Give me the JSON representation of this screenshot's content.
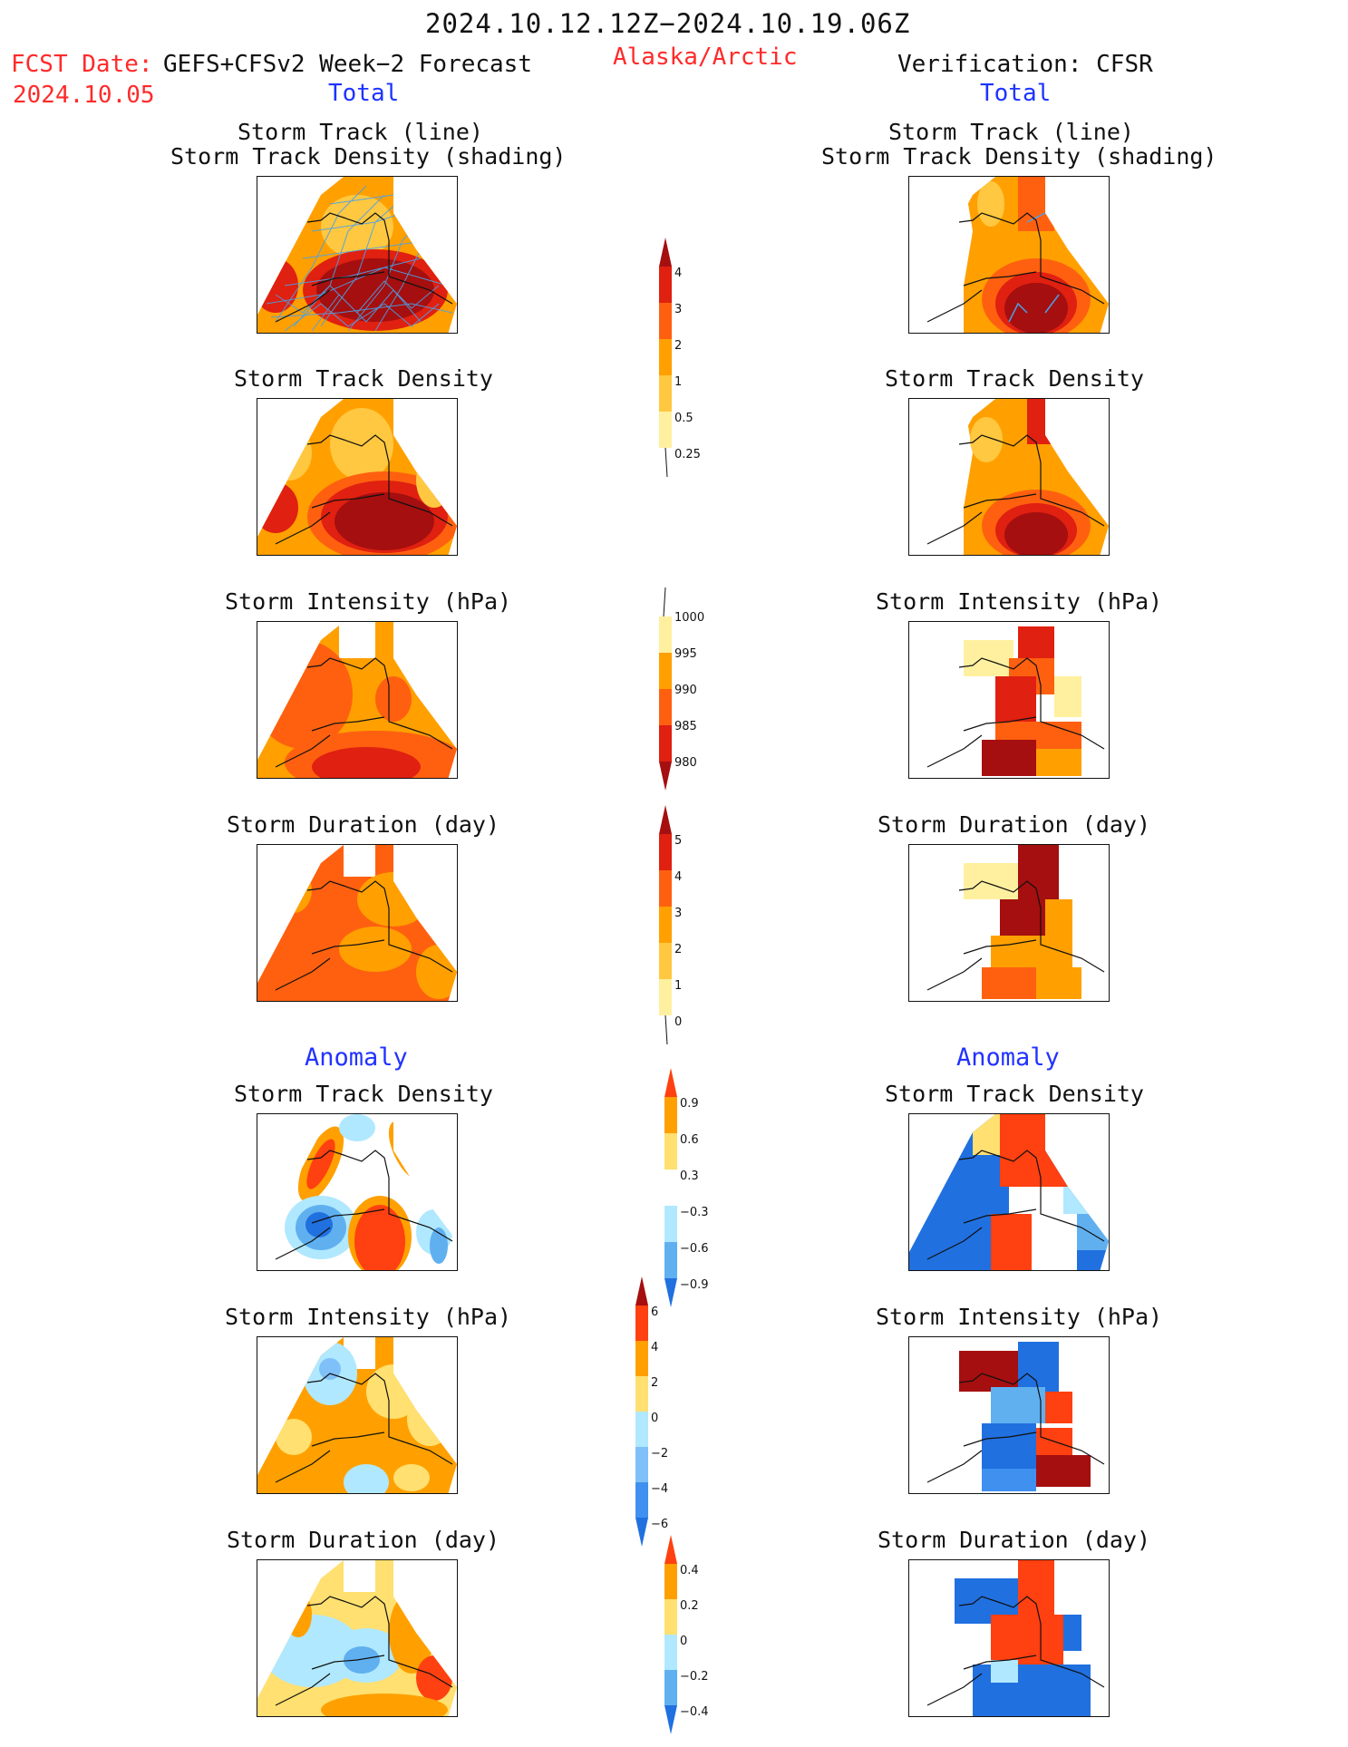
{
  "header": {
    "period": "2024.10.12.12Z−2024.10.19.06Z",
    "fcst_label": "FCST Date:",
    "fcst_source": "GEFS+CFSv2 Week−2 Forecast",
    "fcst_date": "2024.10.05",
    "region": "Alaska/Arctic",
    "verification": "Verification: CFSR"
  },
  "columns": {
    "left_total": "Total",
    "right_total": "Total",
    "left_anomaly": "Anomaly",
    "right_anomaly": "Anomaly"
  },
  "panels": {
    "track_line": "Storm Track (line)",
    "track_shading": "Storm Track Density (shading)",
    "density": "Storm Track Density",
    "intensity": "Storm Intensity (hPa)",
    "duration": "Storm Duration (day)"
  },
  "colorbars": {
    "density_total": {
      "labels": [
        "4",
        "3",
        "2",
        "1",
        "0.5",
        "0.25"
      ],
      "colors": [
        "#a50f0f",
        "#e02010",
        "#ff6010",
        "#ffa000",
        "#ffc840",
        "#fff0a0"
      ]
    },
    "intensity_total": {
      "labels": [
        "1000",
        "995",
        "990",
        "985",
        "980"
      ],
      "colors": [
        "#fff0a0",
        "#ffa000",
        "#ff6010",
        "#e02010",
        "#a50f0f"
      ]
    },
    "duration_total": {
      "labels": [
        "5",
        "4",
        "3",
        "2",
        "1",
        "0"
      ],
      "colors": [
        "#a50f0f",
        "#e02010",
        "#ff6010",
        "#ffa000",
        "#ffc840",
        "#fff0a0"
      ]
    },
    "density_anom": {
      "labels": [
        "0.9",
        "0.6",
        "0.3",
        "−0.3",
        "−0.6",
        "−0.9"
      ],
      "colors": [
        "#ff4010",
        "#ffa000",
        "#ffe070",
        "#ffffff",
        "#b0e8ff",
        "#60b0f0",
        "#2070e0"
      ]
    },
    "intensity_anom": {
      "labels": [
        "6",
        "4",
        "2",
        "0",
        "−2",
        "−4",
        "−6"
      ],
      "colors": [
        "#a50f0f",
        "#ff4010",
        "#ffa000",
        "#ffe070",
        "#b0e8ff",
        "#80c0f8",
        "#4090f0",
        "#2070e0"
      ]
    },
    "duration_anom": {
      "labels": [
        "0.4",
        "0.2",
        "0",
        "−0.2",
        "−0.4"
      ],
      "colors": [
        "#ff4010",
        "#ffa000",
        "#ffe070",
        "#b0e8ff",
        "#60b0f0",
        "#2070e0"
      ]
    }
  }
}
